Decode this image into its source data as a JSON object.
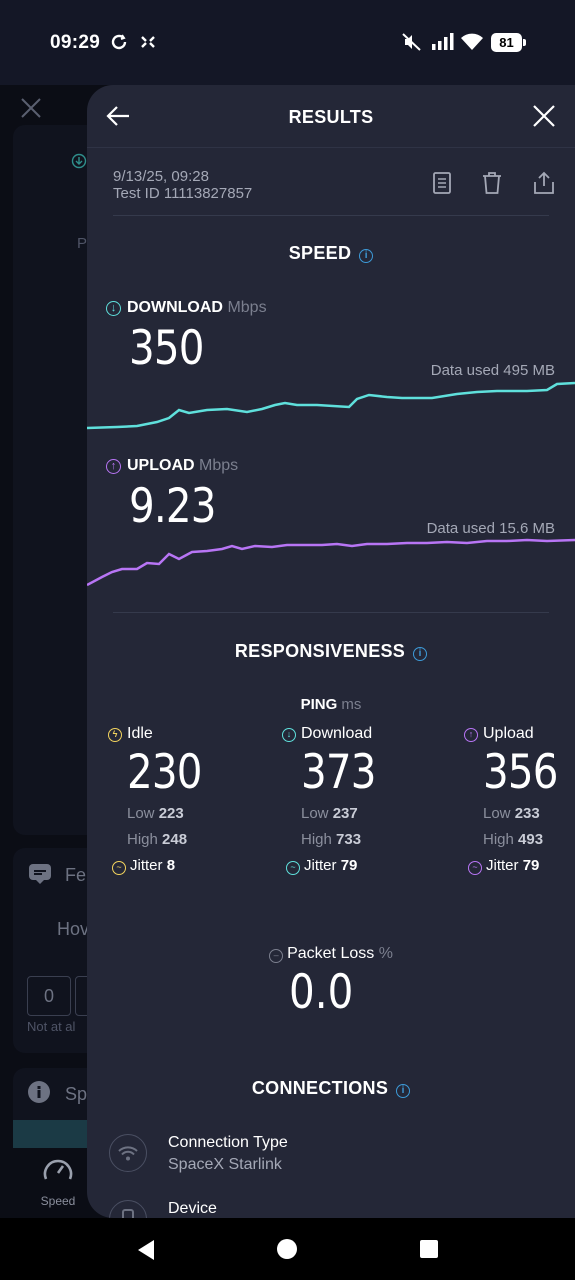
{
  "status_bar": {
    "time": "09:29",
    "battery": "81",
    "icons": [
      "sync-icon",
      "screen-capture-icon",
      "mute-icon",
      "signal-icon",
      "wifi-icon",
      "battery-icon"
    ]
  },
  "background_app": {
    "feedback_label": "Fe",
    "how_label": "Hov",
    "rating_first": "0",
    "not_at_all": "Not at al",
    "sp_label": "Sp",
    "nav_speed": "Speed",
    "p_label": "P"
  },
  "header": {
    "title": "RESULTS"
  },
  "meta": {
    "date": "9/13/25, 09:28",
    "test_id": "Test ID 11113827857"
  },
  "speed": {
    "title": "SPEED",
    "download": {
      "label": "DOWNLOAD",
      "unit": "Mbps",
      "value": "350",
      "data_used": "Data used 495 MB",
      "color": "#5fe0dc"
    },
    "upload": {
      "label": "UPLOAD",
      "unit": "Mbps",
      "value": "9.23",
      "data_used": "Data used 15.6 MB",
      "color": "#b875f5"
    }
  },
  "responsiveness": {
    "title": "RESPONSIVENESS",
    "ping_label": "PING",
    "ping_unit": "ms",
    "idle": {
      "label": "Idle",
      "value": "230",
      "low_label": "Low",
      "low": "223",
      "high_label": "High",
      "high": "248",
      "jitter_label": "Jitter",
      "jitter": "8",
      "color": "#f2d35d"
    },
    "download": {
      "label": "Download",
      "value": "373",
      "low_label": "Low",
      "low": "237",
      "high_label": "High",
      "high": "733",
      "jitter_label": "Jitter",
      "jitter": "79",
      "color": "#5fe0dc"
    },
    "upload": {
      "label": "Upload",
      "value": "356",
      "low_label": "Low",
      "low": "233",
      "high_label": "High",
      "high": "493",
      "jitter_label": "Jitter",
      "jitter": "79",
      "color": "#b875f5"
    },
    "packet_loss": {
      "label": "Packet Loss",
      "unit": "%",
      "value": "0.0"
    }
  },
  "connections": {
    "title": "CONNECTIONS",
    "type_label": "Connection Type",
    "type_value": "SpaceX Starlink",
    "device_label": "Device"
  },
  "colors": {
    "accent_info": "#3d9ad8",
    "panel_bg": "#242737"
  }
}
